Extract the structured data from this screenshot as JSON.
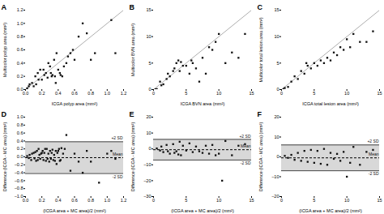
{
  "chart_data": [
    {
      "type": "scatter",
      "title": "A",
      "xlabel": "ICGA polyp area (mm²)",
      "ylabel": "Multicolor polyp area (mm²)",
      "x": [
        0.02,
        0.04,
        0.05,
        0.08,
        0.1,
        0.12,
        0.13,
        0.15,
        0.16,
        0.18,
        0.2,
        0.22,
        0.23,
        0.25,
        0.27,
        0.28,
        0.3,
        0.31,
        0.32,
        0.33,
        0.35,
        0.36,
        0.37,
        0.38,
        0.4,
        0.42,
        0.43,
        0.45,
        0.47,
        0.5,
        0.52,
        0.55,
        0.58,
        0.6,
        0.65,
        0.7,
        0.75,
        0.8,
        0.85,
        1.05,
        1.1
      ],
      "values": [
        0.02,
        0.05,
        0.08,
        0.1,
        0.05,
        0.2,
        0.08,
        0.25,
        0.15,
        0.3,
        0.15,
        0.3,
        0.22,
        0.25,
        0.18,
        0.4,
        0.35,
        0.25,
        0.2,
        0.22,
        0.45,
        0.2,
        0.1,
        0.55,
        0.3,
        0.25,
        0.22,
        0.2,
        0.35,
        0.4,
        0.5,
        0.55,
        0.6,
        0.45,
        0.8,
        1.0,
        0.85,
        0.45,
        0.55,
        1.05,
        0.55
      ],
      "color": "#111111",
      "marker": "square",
      "xlim": [
        0,
        1.2
      ],
      "ylim": [
        0,
        1.2
      ],
      "xticks": [
        {
          "value": 0,
          "label": "0.0"
        },
        0.2,
        0.4,
        0.6,
        0.8,
        {
          "value": 1.0,
          "label": "1.0"
        },
        1.2
      ],
      "yticks": [
        {
          "value": 0,
          "label": "0.0"
        },
        0.2,
        0.4,
        0.6,
        0.8,
        {
          "value": 1.0,
          "label": "1.0"
        },
        1.2
      ],
      "grid": false,
      "identity_line": {
        "x": [
          0,
          1.2
        ],
        "values": [
          0,
          1.2
        ],
        "color": "#999999"
      }
    },
    {
      "type": "scatter",
      "title": "B",
      "xlabel": "ICGA BVN area (mm²)",
      "ylabel": "Multicolor BVN area (mm²)",
      "x": [
        0.3,
        0.5,
        1.0,
        1.2,
        1.5,
        2.0,
        2.2,
        2.5,
        3.0,
        3.2,
        3.5,
        3.8,
        4.0,
        4.2,
        4.5,
        5.0,
        5.5,
        5.8,
        6.0,
        6.5,
        7.0,
        7.5,
        8.0,
        8.5,
        9.0,
        9.5,
        10.0,
        11.0,
        12.0,
        13.0,
        14.0
      ],
      "values": [
        0.05,
        0.1,
        1.5,
        0.8,
        1.0,
        2.0,
        3.0,
        2.5,
        3.5,
        4.0,
        5.0,
        5.5,
        3.5,
        5.2,
        4.5,
        4.5,
        3.0,
        5.5,
        5.0,
        4.0,
        1.5,
        6.0,
        3.0,
        8.0,
        7.5,
        9.0,
        10.5,
        5.0,
        7.0,
        6.0,
        10.5
      ],
      "color": "#111111",
      "marker": "square",
      "xlim": [
        0,
        15
      ],
      "ylim": [
        0,
        15
      ],
      "xticks": [
        0,
        5,
        10,
        15
      ],
      "yticks": [
        0,
        5,
        10,
        15
      ],
      "grid": false,
      "identity_line": {
        "x": [
          0,
          15
        ],
        "values": [
          0,
          15
        ],
        "color": "#999999"
      }
    },
    {
      "type": "scatter",
      "title": "C",
      "xlabel": "ICGA total lesion area (mm²)",
      "ylabel": "Multicolor total lesion area (mm²)",
      "x": [
        0.3,
        0.5,
        1.0,
        1.5,
        2.0,
        2.5,
        3.0,
        3.5,
        3.8,
        4.0,
        4.5,
        5.0,
        5.5,
        6.0,
        6.5,
        7.0,
        7.5,
        8.0,
        8.5,
        9.0,
        9.5,
        10.0,
        10.5,
        11.0,
        12.0,
        13.0,
        14.0
      ],
      "values": [
        0.1,
        0.3,
        0.5,
        1.5,
        2.5,
        2.0,
        3.5,
        3.0,
        5.0,
        4.5,
        4.0,
        5.0,
        4.5,
        5.5,
        5.0,
        6.0,
        5.5,
        7.0,
        6.5,
        8.0,
        7.5,
        9.5,
        8.0,
        10.5,
        9.0,
        9.0,
        11.0
      ],
      "color": "#111111",
      "marker": "square",
      "xlim": [
        0,
        15
      ],
      "ylim": [
        0,
        15
      ],
      "xticks": [
        0,
        5,
        10,
        15
      ],
      "yticks": [
        0,
        5,
        10,
        15
      ],
      "grid": false,
      "identity_line": {
        "x": [
          0,
          15
        ],
        "values": [
          0,
          15
        ],
        "color": "#999999"
      }
    },
    {
      "type": "scatter",
      "title": "D",
      "xlabel": "(ICGA area + MC area)/2 (mm²)",
      "ylabel": "Difference (ICGA - MC area) (mm²)",
      "x": [
        0.02,
        0.04,
        0.05,
        0.07,
        0.08,
        0.1,
        0.11,
        0.12,
        0.13,
        0.14,
        0.15,
        0.16,
        0.17,
        0.18,
        0.19,
        0.2,
        0.21,
        0.22,
        0.23,
        0.24,
        0.25,
        0.26,
        0.27,
        0.28,
        0.29,
        0.3,
        0.31,
        0.32,
        0.33,
        0.34,
        0.35,
        0.36,
        0.37,
        0.38,
        0.39,
        0.4,
        0.41,
        0.42,
        0.43,
        0.44,
        0.46,
        0.48,
        0.5,
        0.55,
        0.6,
        0.65,
        0.7,
        0.75,
        0.8,
        0.9,
        1.0,
        1.05,
        1.1
      ],
      "values": [
        0.02,
        -0.03,
        0.05,
        -0.08,
        0.08,
        0.1,
        -0.04,
        0.12,
        -0.1,
        0.15,
        -0.08,
        0.2,
        0.05,
        -0.05,
        0.08,
        0.1,
        0.15,
        -0.08,
        0.1,
        0.2,
        -0.1,
        0.2,
        -0.05,
        0.08,
        -0.12,
        0.15,
        -0.05,
        0.1,
        0.18,
        -0.08,
        0.05,
        -0.1,
        0.15,
        -0.18,
        0.1,
        0.15,
        0.2,
        -0.1,
        -0.08,
        0.22,
        0.08,
        0.2,
        0.55,
        -0.35,
        0.08,
        -0.12,
        -0.4,
        0.15,
        -0.12,
        -0.65,
        0.08,
        0.15,
        -0.05
      ],
      "color": "#111111",
      "marker": "square",
      "xlim": [
        0,
        1.2
      ],
      "ylim": [
        -1.0,
        1.0
      ],
      "xticks": [
        {
          "value": 0,
          "label": "0.0"
        },
        0.2,
        0.4,
        0.6,
        0.8,
        {
          "value": 1.0,
          "label": "1.0"
        },
        1.2
      ],
      "yticks": [
        {
          "value": -1.0,
          "label": "−1.0"
        },
        {
          "value": -0.8,
          "label": "−0.8"
        },
        {
          "value": -0.6,
          "label": "−0.6"
        },
        {
          "value": -0.4,
          "label": "−0.4"
        },
        {
          "value": -0.2,
          "label": "−0.2"
        },
        {
          "value": 0,
          "label": "0.0"
        },
        0.2,
        0.4,
        0.6,
        0.8,
        {
          "value": 1.0,
          "label": "1.0"
        }
      ],
      "grid": false,
      "band": {
        "y1": -0.42,
        "y2": 0.38,
        "color": "#d8d8d8"
      },
      "reference_lines": [
        {
          "label": "+2 SD",
          "value": 0.38,
          "color": "#444444",
          "line_style": "solid"
        },
        {
          "label": "-2 SD",
          "value": -0.42,
          "color": "#444444",
          "line_style": "solid"
        },
        {
          "label": "Mean",
          "value": -0.02,
          "color": "#000000",
          "line_style": "dashed"
        }
      ]
    },
    {
      "type": "scatter",
      "title": "E",
      "xlabel": "(ICGA area + MC area)/2 (mm²)",
      "ylabel": "Difference (ICGA - MC area) (mm²)",
      "x": [
        0.5,
        1.0,
        1.2,
        1.5,
        2.0,
        2.2,
        2.5,
        3.0,
        3.2,
        3.5,
        3.8,
        4.0,
        4.2,
        4.5,
        5.0,
        5.5,
        6.0,
        6.5,
        7.0,
        7.5,
        8.0,
        8.5,
        9.0,
        9.5,
        10.0,
        10.5,
        11.0,
        12.0,
        13.0,
        14.0
      ],
      "values": [
        0.3,
        -1.0,
        1.5,
        -2.0,
        2.5,
        -1.5,
        -3.0,
        3.0,
        -2.5,
        -1.5,
        -3.5,
        4.5,
        -4.0,
        2.0,
        -1.0,
        3.5,
        -2.0,
        1.5,
        -1.5,
        -2.5,
        2.0,
        -3.0,
        2.5,
        -4.0,
        -3.0,
        -20.0,
        5.0,
        -4.0,
        2.0,
        3.0
      ],
      "color": "#111111",
      "marker": "square",
      "xlim": [
        0,
        15
      ],
      "ylim": [
        -30,
        20
      ],
      "xticks": [
        0,
        5,
        10,
        15
      ],
      "yticks": [
        {
          "value": -30,
          "label": "−30"
        },
        {
          "value": -20,
          "label": "−20"
        },
        {
          "value": -10,
          "label": "−10"
        },
        0,
        10,
        20
      ],
      "grid": false,
      "band": {
        "y1": -7.0,
        "y2": 6.0,
        "color": "#d8d8d8"
      },
      "reference_lines": [
        {
          "label": "+2 SD",
          "value": 6.0,
          "color": "#444444",
          "line_style": "solid"
        },
        {
          "label": "-2 SD",
          "value": -7.0,
          "color": "#444444",
          "line_style": "solid"
        },
        {
          "label": "Mean",
          "value": -0.5,
          "color": "#000000",
          "line_style": "dashed"
        }
      ]
    },
    {
      "type": "scatter",
      "title": "F",
      "xlabel": "(ICGA area + MC area)/2 (mm²)",
      "ylabel": "Difference (ICGA - MC area) (mm²)",
      "x": [
        0.5,
        1.0,
        1.5,
        2.0,
        2.5,
        3.0,
        3.5,
        4.0,
        4.5,
        5.0,
        5.5,
        6.0,
        6.5,
        7.0,
        7.5,
        8.0,
        8.5,
        9.0,
        9.5,
        10.0,
        10.5,
        11.0,
        12.0,
        13.0,
        14.0
      ],
      "values": [
        0.5,
        -0.5,
        1.0,
        -1.5,
        2.0,
        -2.0,
        3.0,
        -2.5,
        3.5,
        -3.0,
        3.0,
        -3.5,
        4.0,
        -4.0,
        2.0,
        -1.0,
        1.5,
        -2.0,
        2.5,
        -10.0,
        -3.0,
        5.0,
        -4.0,
        2.5,
        3.5
      ],
      "color": "#111111",
      "marker": "square",
      "xlim": [
        0,
        15
      ],
      "ylim": [
        -20,
        20
      ],
      "xticks": [
        0,
        5,
        10,
        15
      ],
      "yticks": [
        {
          "value": -20,
          "label": "−20"
        },
        {
          "value": -10,
          "label": "−10"
        },
        0,
        10,
        20
      ],
      "grid": false,
      "band": {
        "y1": -7.0,
        "y2": 6.0,
        "color": "#d8d8d8"
      },
      "reference_lines": [
        {
          "label": "+2 SD",
          "value": 6.0,
          "color": "#444444",
          "line_style": "solid"
        },
        {
          "label": "-2 SD",
          "value": -7.0,
          "color": "#444444",
          "line_style": "solid"
        },
        {
          "label": "Mean",
          "value": -0.5,
          "color": "#000000",
          "line_style": "dashed"
        }
      ]
    }
  ]
}
